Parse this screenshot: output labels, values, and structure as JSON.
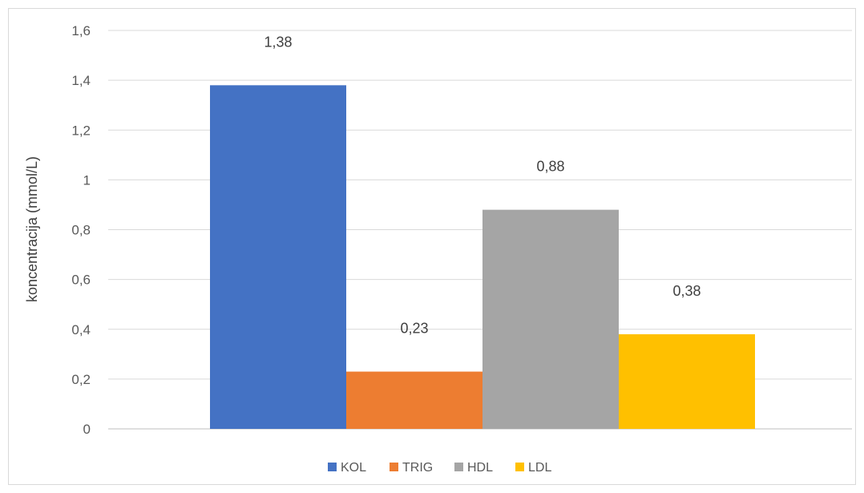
{
  "chart_data": {
    "type": "bar",
    "ylabel": "koncentracija (mmol/L)",
    "ylim": [
      0,
      1.6
    ],
    "ytick_step": 0.2,
    "ytick_labels": [
      "0",
      "0,2",
      "0,4",
      "0,6",
      "0,8",
      "1",
      "1,2",
      "1,4",
      "1,6"
    ],
    "grid": true,
    "legend_position": "bottom",
    "series": [
      {
        "name": "KOL",
        "value": 1.38,
        "label": "1,38",
        "color": "#4472C4"
      },
      {
        "name": "TRIG",
        "value": 0.23,
        "label": "0,23",
        "color": "#ED7D31"
      },
      {
        "name": "HDL",
        "value": 0.88,
        "label": "0,88",
        "color": "#A5A5A5"
      },
      {
        "name": "LDL",
        "value": 0.38,
        "label": "0,38",
        "color": "#FFC000"
      }
    ]
  }
}
